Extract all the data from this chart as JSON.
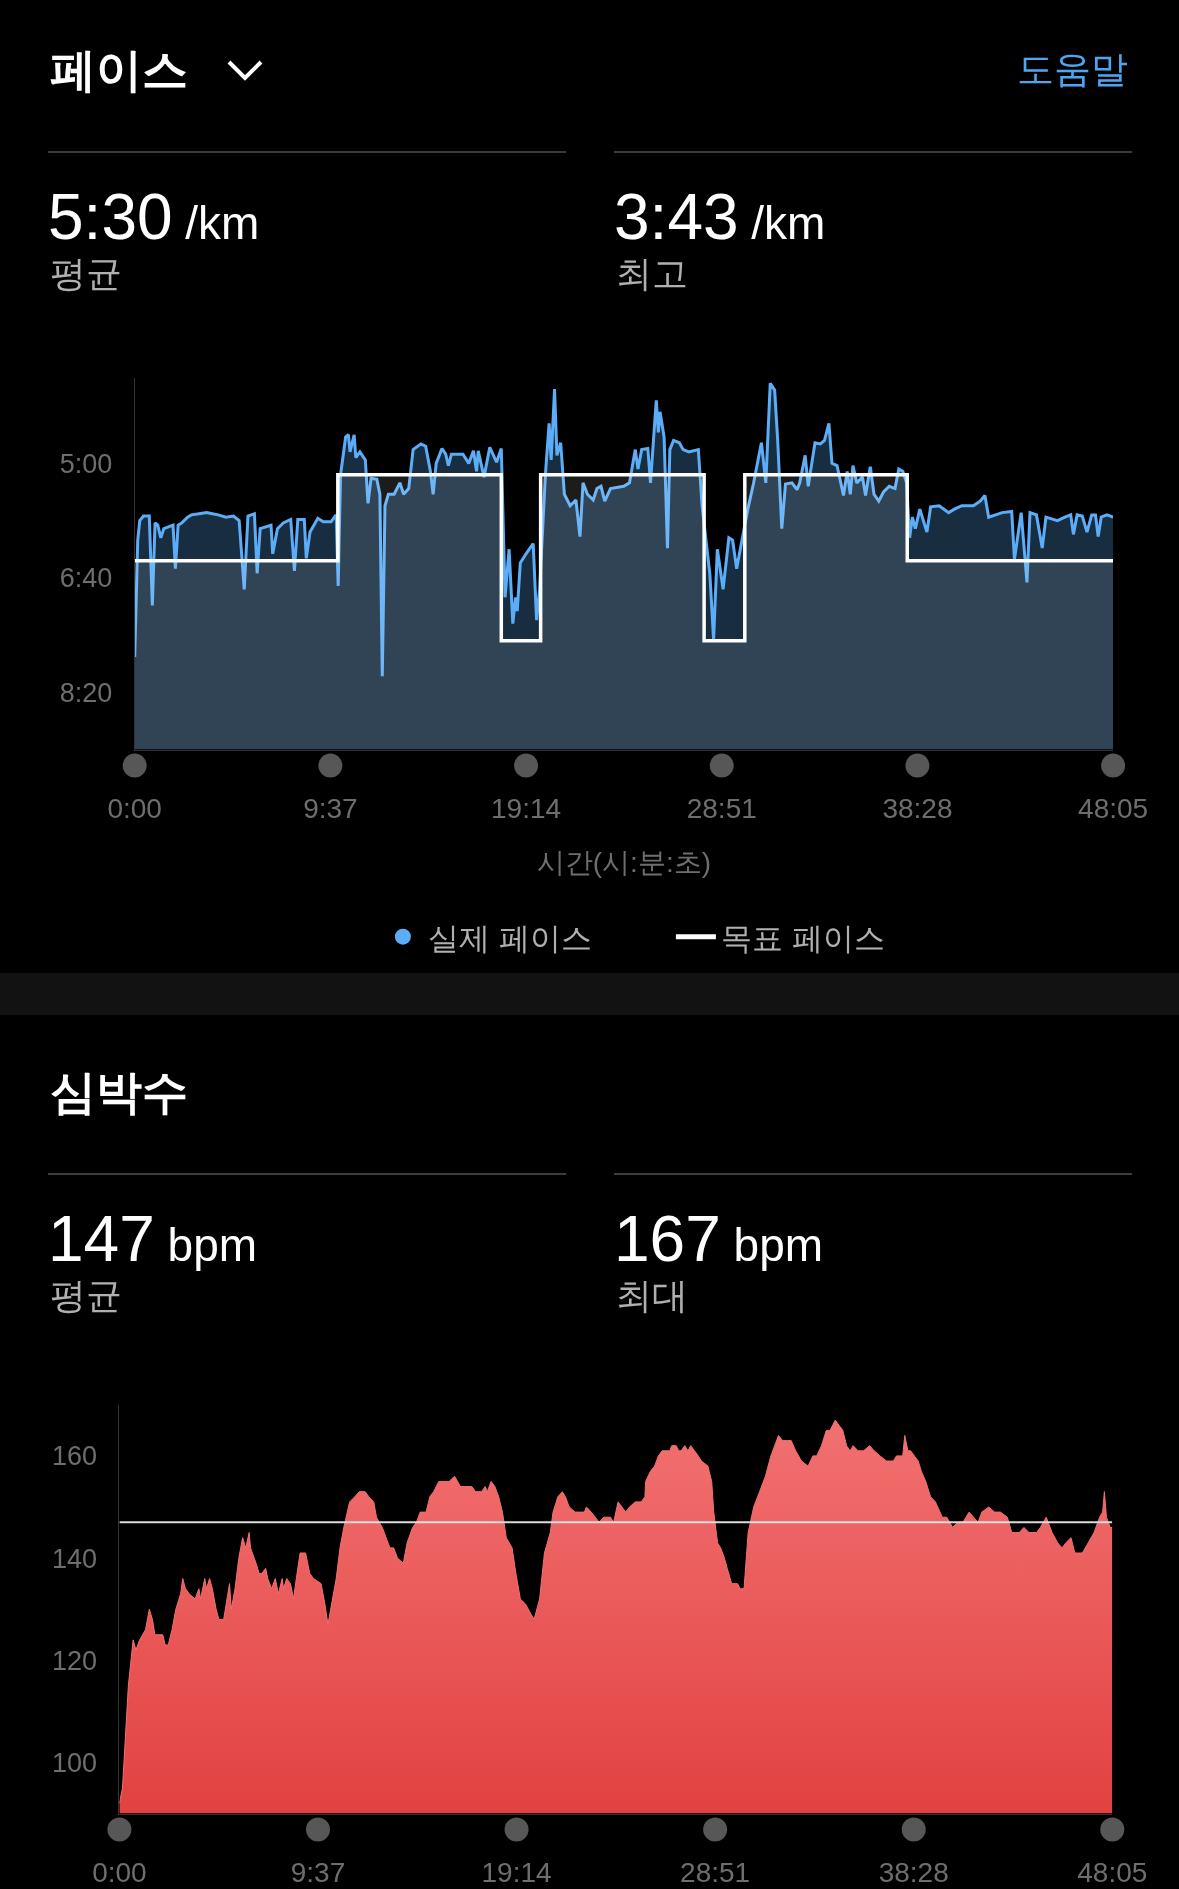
{
  "chart_data": [
    {
      "type": "line",
      "title": "페이스",
      "annotations": [
        "5:30 /km",
        "평균",
        "3:43 /km",
        "최고",
        "도움말"
      ],
      "xlabel": "시간(시:분:초)",
      "legend": "bottom",
      "xlim": [
        0,
        2885
      ],
      "xticks": [
        {
          "value": 0,
          "label": "0:00"
        },
        {
          "value": 577,
          "label": "9:37"
        },
        {
          "value": 1154,
          "label": "19:14"
        },
        {
          "value": 1731,
          "label": "28:51"
        },
        {
          "value": 2308,
          "label": "38:28"
        },
        {
          "value": 2885,
          "label": "48:05"
        }
      ],
      "ylim": [
        550,
        225
      ],
      "yticks": [
        {
          "value": 300,
          "label": "5:00"
        },
        {
          "value": 400,
          "label": "6:40"
        },
        {
          "value": 500,
          "label": "8:20"
        }
      ],
      "series": [
        {
          "name": "실제 페이스",
          "type": "line",
          "color": "#5cadf7",
          "x": [
            0,
            9,
            15,
            26,
            43,
            52,
            60,
            68,
            77,
            86,
            113,
            120,
            128,
            139,
            156,
            167,
            190,
            212,
            229,
            246,
            269,
            291,
            308,
            323,
            334,
            353,
            361,
            370,
            402,
            407,
            421,
            438,
            460,
            471,
            481,
            500,
            506,
            517,
            540,
            556,
            579,
            594,
            600,
            607,
            622,
            630,
            635,
            647,
            652,
            664,
            680,
            688,
            697,
            714,
            723,
            730,
            738,
            748,
            765,
            782,
            793,
            808,
            821,
            844,
            858,
            872,
            880,
            889,
            906,
            917,
            925,
            934,
            968,
            985,
            999,
            1008,
            1013,
            1030,
            1047,
            1067,
            1081,
            1092,
            1104,
            1115,
            1123,
            1128,
            1137,
            1154,
            1175,
            1185,
            1194,
            1211,
            1222,
            1228,
            1238,
            1245,
            1256,
            1267,
            1284,
            1301,
            1313,
            1322,
            1335,
            1352,
            1363,
            1375,
            1386,
            1403,
            1442,
            1459,
            1476,
            1484,
            1495,
            1513,
            1521,
            1532,
            1538,
            1544,
            1549,
            1561,
            1571,
            1578,
            1589,
            1606,
            1617,
            1634,
            1662,
            1673,
            1696,
            1707,
            1718,
            1735,
            1752,
            1763,
            1775,
            1792,
            1808,
            1825,
            1848,
            1861,
            1874,
            1887,
            1896,
            1908,
            1919,
            1938,
            1953,
            1961,
            1977,
            1986,
            2006,
            2022,
            2034,
            2047,
            2056,
            2071,
            2079,
            2090,
            2101,
            2110,
            2118,
            2129,
            2146,
            2155,
            2169,
            2180,
            2194,
            2208,
            2225,
            2242,
            2253,
            2265,
            2276,
            2285,
            2293,
            2302,
            2315,
            2336,
            2347,
            2372,
            2400,
            2417,
            2439,
            2473,
            2493,
            2507,
            2518,
            2558,
            2586,
            2594,
            2614,
            2631,
            2640,
            2659,
            2676,
            2687,
            2721,
            2743,
            2760,
            2768,
            2779,
            2794,
            2808,
            2822,
            2833,
            2841,
            2850,
            2867,
            2885
          ],
          "values": [
            469,
            367,
            350,
            346,
            346,
            424,
            352,
            354,
            365,
            357,
            354,
            392,
            354,
            352,
            347,
            345,
            344,
            343,
            344,
            345,
            347,
            346,
            350,
            410,
            346,
            344,
            396,
            357,
            354,
            379,
            357,
            352,
            349,
            394,
            349,
            349,
            383,
            360,
            348,
            351,
            351,
            345,
            407,
            310,
            277,
            275,
            290,
            275,
            295,
            290,
            297,
            335,
            313,
            314,
            327,
            486,
            337,
            327,
            327,
            317,
            327,
            322,
            288,
            283,
            285,
            307,
            327,
            300,
            287,
            292,
            302,
            292,
            292,
            300,
            289,
            307,
            289,
            312,
            286,
            299,
            287,
            417,
            375,
            440,
            417,
            429,
            387,
            379,
            370,
            437,
            410,
            310,
            265,
            297,
            235,
            293,
            282,
            327,
            337,
            332,
            364,
            317,
            327,
            332,
            322,
            320,
            333,
            322,
            320,
            317,
            288,
            305,
            288,
            287,
            317,
            270,
            245,
            273,
            255,
            277,
            374,
            288,
            280,
            282,
            288,
            290,
            288,
            337,
            397,
            454,
            375,
            410,
            365,
            367,
            392,
            365,
            340,
            317,
            282,
            317,
            230,
            236,
            280,
            357,
            318,
            317,
            323,
            317,
            293,
            320,
            282,
            283,
            280,
            265,
            300,
            302,
            313,
            328,
            307,
            327,
            302,
            317,
            312,
            328,
            303,
            327,
            333,
            325,
            320,
            322,
            305,
            307,
            317,
            365,
            347,
            357,
            340,
            360,
            338,
            337,
            343,
            340,
            337,
            337,
            333,
            328,
            347,
            343,
            342,
            384,
            343,
            404,
            343,
            345,
            374,
            347,
            350,
            347,
            345,
            362,
            345,
            346,
            360,
            345,
            345,
            364,
            347,
            345,
            347
          ],
          "upper": [
            469,
            367,
            350,
            346,
            346,
            424,
            352,
            354,
            365,
            357,
            354,
            392,
            354,
            352,
            347,
            345,
            344,
            343,
            344,
            345,
            347,
            346,
            350,
            410,
            346,
            344,
            396,
            357,
            354,
            379,
            357,
            352,
            349,
            394,
            349,
            349,
            383,
            360,
            348,
            351,
            351,
            345,
            407,
            310,
            277,
            275,
            290,
            275,
            295,
            290,
            297,
            335,
            313,
            314,
            327,
            486,
            337,
            327,
            327,
            317,
            327,
            322,
            288,
            283,
            285,
            307,
            327,
            300,
            287,
            292,
            302,
            292,
            292,
            300,
            289,
            307,
            289,
            312,
            286,
            299,
            287,
            417,
            375,
            440,
            417,
            429,
            387,
            379,
            370,
            437,
            410,
            310,
            265,
            297,
            235,
            293,
            282,
            327,
            337,
            332,
            364,
            317,
            327,
            332,
            322,
            320,
            333,
            322,
            320,
            317,
            288,
            305,
            288,
            287,
            317,
            270,
            245,
            273,
            255,
            277,
            374,
            288,
            280,
            282,
            288,
            290,
            288,
            337,
            397,
            454,
            375,
            410,
            365,
            367,
            392,
            365,
            340,
            317,
            282,
            317,
            230,
            236,
            280,
            357,
            318,
            317,
            323,
            317,
            293,
            320,
            282,
            283,
            280,
            265,
            300,
            302,
            313,
            328,
            307,
            327,
            302,
            317,
            312,
            328,
            303,
            327,
            333,
            325,
            320,
            322,
            305,
            307,
            317,
            365,
            347,
            357,
            340,
            360,
            338,
            337,
            343,
            340,
            337,
            337,
            333,
            328,
            347,
            343,
            342,
            384,
            343,
            404,
            343,
            345,
            374,
            347,
            350,
            347,
            345,
            362,
            345,
            346,
            360,
            345,
            345,
            364,
            347,
            345,
            347
          ],
          "lower": [
            550,
            550,
            550,
            550,
            550,
            550,
            550,
            550,
            550,
            550,
            550,
            550,
            550,
            550,
            550,
            550,
            550,
            550,
            550,
            550,
            550,
            550,
            550,
            550,
            550,
            550,
            550,
            550,
            550,
            550,
            550,
            550,
            550,
            550,
            550,
            550,
            550,
            550,
            550,
            550,
            550,
            550,
            550,
            550,
            550,
            550,
            550,
            550,
            550,
            550,
            550,
            550,
            550,
            550,
            550,
            550,
            550,
            550,
            550,
            550,
            550,
            550,
            550,
            550,
            550,
            550,
            550,
            550,
            550,
            550,
            550,
            550,
            550,
            550,
            550,
            550,
            550,
            550,
            550,
            550,
            550,
            550,
            550,
            550,
            550,
            550,
            550,
            550,
            550,
            550,
            550,
            550,
            550,
            550,
            550,
            550,
            550,
            550,
            550,
            550,
            550,
            550,
            550,
            550,
            550,
            550,
            550,
            550,
            550,
            550,
            550,
            550,
            550,
            550,
            550,
            550,
            550,
            550,
            550,
            550,
            550,
            550,
            550,
            550,
            550,
            550,
            550,
            550,
            550,
            550,
            550,
            550,
            550,
            550,
            550,
            550,
            550,
            550,
            550,
            550,
            550,
            550,
            550,
            550,
            550,
            550,
            550,
            550,
            550,
            550,
            550,
            550,
            550,
            550,
            550,
            550,
            550,
            550,
            550,
            550,
            550,
            550,
            550,
            550,
            550,
            550,
            550,
            550,
            550,
            550,
            550,
            550,
            550,
            550,
            550,
            550,
            550,
            550,
            550,
            550,
            550,
            550,
            550,
            550,
            550,
            550,
            550,
            550,
            550,
            550,
            550,
            550,
            550,
            550,
            550,
            550,
            550,
            550,
            550,
            550,
            550,
            550,
            550,
            550,
            550,
            550,
            550,
            550,
            550
          ]
        },
        {
          "name": "목표 페이스",
          "type": "line",
          "color": "#ffffff",
          "x": [
            0,
            599,
            599,
            1081,
            1081,
            1197,
            1197,
            1679,
            1679,
            1799,
            1799,
            2278,
            2278,
            2885
          ],
          "values": [
            385,
            385,
            310,
            310,
            455,
            455,
            310,
            310,
            455,
            455,
            310,
            310,
            385,
            385
          ],
          "upper": [
            385,
            385,
            310,
            310,
            455,
            455,
            310,
            310,
            455,
            455,
            310,
            310,
            385,
            385
          ],
          "lower": [
            550,
            550,
            550,
            550,
            550,
            550,
            550,
            550,
            550,
            550,
            550,
            550,
            550,
            550
          ]
        }
      ]
    },
    {
      "type": "area",
      "title": "심박수",
      "annotations": [
        "147 bpm",
        "평균",
        "167 bpm",
        "최대"
      ],
      "xlim": [
        0,
        2885
      ],
      "xticks": [
        {
          "value": 0,
          "label": "0:00"
        },
        {
          "value": 577,
          "label": "9:37"
        },
        {
          "value": 1154,
          "label": "19:14"
        },
        {
          "value": 1731,
          "label": "28:51"
        },
        {
          "value": 2308,
          "label": "38:28"
        },
        {
          "value": 2885,
          "label": "48:05"
        }
      ],
      "ylim": [
        90,
        170
      ],
      "yticks": [
        100,
        120,
        140,
        160
      ],
      "ref_lines": [
        {
          "axis": "y",
          "value": 147,
          "color": "#dcdcdc"
        }
      ],
      "series": [
        {
          "color": "#ee4444",
          "x": [
            0,
            9,
            26,
            40,
            48,
            59,
            76,
            87,
            96,
            103,
            126,
            133,
            142,
            153,
            164,
            178,
            184,
            192,
            203,
            220,
            231,
            236,
            248,
            253,
            262,
            270,
            281,
            289,
            303,
            320,
            325,
            336,
            347,
            358,
            367,
            377,
            381,
            397,
            406,
            414,
            425,
            431,
            442,
            453,
            462,
            473,
            477,
            486,
            497,
            506,
            514,
            525,
            533,
            541,
            553,
            564,
            586,
            597,
            606,
            614,
            630,
            641,
            652,
            669,
            684,
            697,
            714,
            725,
            739,
            747,
            755,
            764,
            775,
            786,
            797,
            808,
            825,
            836,
            852,
            863,
            874,
            891,
            902,
            913,
            928,
            958,
            974,
            991,
            1002,
            1024,
            1035,
            1052,
            1063,
            1069,
            1080,
            1091,
            1102,
            1113,
            1124,
            1141,
            1152,
            1165,
            1180,
            1196,
            1205,
            1221,
            1235,
            1252,
            1260,
            1274,
            1287,
            1296,
            1307,
            1324,
            1351,
            1357,
            1371,
            1394,
            1407,
            1427,
            1436,
            1449,
            1460,
            1471,
            1482,
            1499,
            1516,
            1527,
            1529,
            1543,
            1555,
            1566,
            1577,
            1599,
            1605,
            1618,
            1625,
            1632,
            1643,
            1652,
            1660,
            1671,
            1682,
            1691,
            1710,
            1721,
            1727,
            1738,
            1747,
            1758,
            1766,
            1779,
            1796,
            1804,
            1815,
            1827,
            1843,
            1860,
            1877,
            1893,
            1915,
            1927,
            1938,
            1952,
            1965,
            1982,
            2001,
            2015,
            2026,
            2040,
            2054,
            2065,
            2080,
            2091,
            2102,
            2113,
            2123,
            2132,
            2146,
            2162,
            2180,
            2193,
            2210,
            2229,
            2249,
            2258,
            2276,
            2282,
            2291,
            2299,
            2310,
            2321,
            2330,
            2343,
            2357,
            2371,
            2391,
            2404,
            2421,
            2435,
            2451,
            2469,
            2482,
            2495,
            2506,
            2526,
            2543,
            2560,
            2580,
            2593,
            2604,
            2615,
            2628,
            2643,
            2654,
            2665,
            2676,
            2693,
            2710,
            2726,
            2739,
            2750,
            2765,
            2776,
            2787,
            2798,
            2815,
            2832,
            2848,
            2857,
            2862,
            2868,
            2879,
            2885
          ],
          "values": [
            92,
            95,
            115,
            124,
            122,
            124,
            126,
            130,
            128,
            125,
            125,
            123,
            123,
            126,
            130,
            133,
            136,
            134,
            133,
            132,
            134,
            132,
            136,
            134,
            136,
            134,
            130,
            128,
            128,
            135,
            130,
            134,
            140,
            144,
            142,
            145,
            142,
            139,
            137,
            137,
            138,
            136,
            134,
            136,
            133,
            136,
            134,
            136,
            135,
            132,
            136,
            141,
            141,
            141,
            137,
            136,
            135,
            131,
            127,
            130,
            136,
            142,
            146,
            151,
            152,
            153,
            153,
            152,
            151,
            148,
            147,
            146,
            144,
            142,
            142,
            140,
            139,
            143,
            146,
            147,
            149,
            149,
            152,
            153,
            155,
            155,
            156,
            154,
            154,
            154,
            153,
            153,
            154,
            153,
            155,
            154,
            152,
            149,
            144,
            142,
            137,
            132,
            131,
            129,
            128,
            132,
            141,
            145,
            149,
            152,
            153,
            152,
            150,
            149,
            149,
            150,
            149,
            147,
            148,
            148,
            147,
            151,
            150,
            149,
            150,
            151,
            151,
            152,
            155,
            157,
            158,
            160,
            161,
            161,
            162,
            162,
            161,
            161,
            162,
            161,
            162,
            161,
            160,
            159,
            158,
            155,
            149,
            143,
            142,
            140,
            138,
            135,
            135,
            134,
            134,
            145,
            150,
            153,
            156,
            160,
            164,
            163,
            163,
            163,
            161,
            159,
            158,
            160,
            160,
            162,
            165,
            165,
            167,
            166,
            165,
            162,
            161,
            162,
            161,
            161,
            162,
            161,
            160,
            159,
            159,
            160,
            160,
            164,
            161,
            161,
            160,
            159,
            157,
            155,
            152,
            151,
            148,
            148,
            146,
            147,
            147,
            149,
            148,
            147,
            149,
            150,
            149,
            149,
            148,
            145,
            145,
            145,
            146,
            145,
            145,
            145,
            146,
            148,
            145,
            143,
            142,
            143,
            144,
            141,
            141,
            141,
            143,
            145,
            148,
            149,
            153,
            148,
            146,
            146
          ]
        }
      ]
    }
  ]
}
